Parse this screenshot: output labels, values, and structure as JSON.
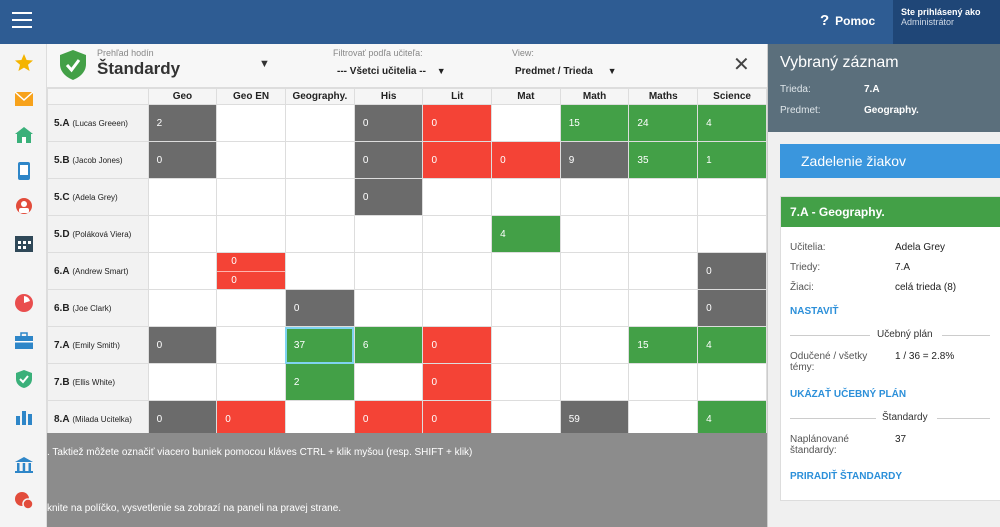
{
  "topbar": {
    "help_label": "Pomoc",
    "help_glyph": "?",
    "user_line1": "Ste prihlásený ako",
    "user_line2": "Administrátor"
  },
  "header": {
    "subtitle": "Prehľad hodín",
    "title": "Štandardy",
    "teacher_filter_label": "Filtrovať podľa učiteľa:",
    "teacher_filter_value": "--- Všetci učitelia --",
    "view_label": "View:",
    "view_value": "Predmet / Trieda"
  },
  "grid": {
    "columns": [
      "Geo",
      "Geo EN",
      "Geography.",
      "His",
      "Lit",
      "Mat",
      "Math",
      "Maths",
      "Science"
    ],
    "rows": [
      {
        "cls": "5.A",
        "teacher": "(Lucas Greeen)",
        "cells": [
          [
            "grey",
            "2"
          ],
          [
            "",
            ""
          ],
          [
            "",
            ""
          ],
          [
            "grey",
            "0"
          ],
          [
            "red",
            "0"
          ],
          [
            "",
            ""
          ],
          [
            "green",
            "15"
          ],
          [
            "green",
            "24"
          ],
          [
            "green",
            "4"
          ]
        ]
      },
      {
        "cls": "5.B",
        "teacher": "(Jacob Jones)",
        "cells": [
          [
            "grey",
            "0"
          ],
          [
            "",
            ""
          ],
          [
            "",
            ""
          ],
          [
            "grey",
            "0"
          ],
          [
            "red",
            "0"
          ],
          [
            "red",
            "0"
          ],
          [
            "grey",
            "9"
          ],
          [
            "green",
            "35"
          ],
          [
            "green",
            "1"
          ]
        ]
      },
      {
        "cls": "5.C",
        "teacher": "(Adela Grey)",
        "cells": [
          [
            "",
            ""
          ],
          [
            "",
            ""
          ],
          [
            "",
            ""
          ],
          [
            "grey",
            "0"
          ],
          [
            "",
            ""
          ],
          [
            "",
            ""
          ],
          [
            "",
            ""
          ],
          [
            "",
            ""
          ],
          [
            "",
            ""
          ]
        ]
      },
      {
        "cls": "5.D",
        "teacher": "(Poláková Viera)",
        "cells": [
          [
            "",
            ""
          ],
          [
            "",
            ""
          ],
          [
            "",
            ""
          ],
          [
            "",
            ""
          ],
          [
            "",
            ""
          ],
          [
            "green",
            "4"
          ],
          [
            "",
            ""
          ],
          [
            "",
            ""
          ],
          [
            "",
            ""
          ]
        ]
      },
      {
        "cls": "6.A",
        "teacher": "(Andrew Smart)",
        "cells": [
          [
            "",
            ""
          ],
          [
            "split",
            "0",
            "0"
          ],
          [
            "",
            ""
          ],
          [
            "",
            ""
          ],
          [
            "",
            ""
          ],
          [
            "",
            ""
          ],
          [
            "",
            ""
          ],
          [
            "",
            ""
          ],
          [
            "grey",
            "0"
          ]
        ]
      },
      {
        "cls": "6.B",
        "teacher": "(Joe Clark)",
        "cells": [
          [
            "",
            ""
          ],
          [
            "",
            ""
          ],
          [
            "grey",
            "0"
          ],
          [
            "",
            ""
          ],
          [
            "",
            ""
          ],
          [
            "",
            ""
          ],
          [
            "",
            ""
          ],
          [
            "",
            ""
          ],
          [
            "grey",
            "0"
          ]
        ]
      },
      {
        "cls": "7.A",
        "teacher": "(Emily Smith)",
        "cells": [
          [
            "grey",
            "0"
          ],
          [
            "",
            ""
          ],
          [
            "green sel",
            "37"
          ],
          [
            "green",
            "6"
          ],
          [
            "red",
            "0"
          ],
          [
            "",
            ""
          ],
          [
            "",
            ""
          ],
          [
            "green",
            "15"
          ],
          [
            "green",
            "4"
          ]
        ]
      },
      {
        "cls": "7.B",
        "teacher": "(Ellis White)",
        "cells": [
          [
            "",
            ""
          ],
          [
            "",
            ""
          ],
          [
            "green",
            "2"
          ],
          [
            "",
            ""
          ],
          [
            "red",
            "0"
          ],
          [
            "",
            ""
          ],
          [
            "",
            ""
          ],
          [
            "",
            ""
          ],
          [
            "",
            ""
          ]
        ]
      },
      {
        "cls": "8.A",
        "teacher": "(Milada Ucitelka)",
        "cells": [
          [
            "grey",
            "0"
          ],
          [
            "red",
            "0"
          ],
          [
            "",
            ""
          ],
          [
            "red",
            "0"
          ],
          [
            "red",
            "0"
          ],
          [
            "",
            ""
          ],
          [
            "grey",
            "59"
          ],
          [
            "",
            ""
          ],
          [
            "green",
            "4"
          ]
        ]
      }
    ]
  },
  "hints": {
    "line1": ". Taktiež môžete označiť viacero buniek pomocou kláves CTRL + klik myšou (resp. SHIFT + klik)",
    "line2": "knite na políčko, vysvetlenie sa zobrazí na paneli na pravej strane."
  },
  "panel": {
    "title": "Vybraný záznam",
    "class_label": "Trieda:",
    "class_value": "7.A",
    "subject_label": "Predmet:",
    "subject_value": "Geography.",
    "assign_button": "Zadelenie žiakov",
    "card_title": "7.A - Geography.",
    "teachers_label": "Učitelia:",
    "teachers_value": "Adela Grey",
    "classes_label": "Triedy:",
    "classes_value": "7.A",
    "students_label": "Žiaci:",
    "students_value": "celá trieda (8)",
    "set_link": "NASTAVIŤ",
    "plan_section": "Učebný plán",
    "taught_label": "Odučené / všetky témy:",
    "taught_value": "1 / 36 = 2.8%",
    "show_plan_link": "UKÁZAŤ UČEBNÝ PLÁN",
    "standards_section": "Štandardy",
    "planned_label": "Naplánované štandardy:",
    "planned_value": "37",
    "assign_std_link": "PRIRADIŤ ŠTANDARDY"
  }
}
